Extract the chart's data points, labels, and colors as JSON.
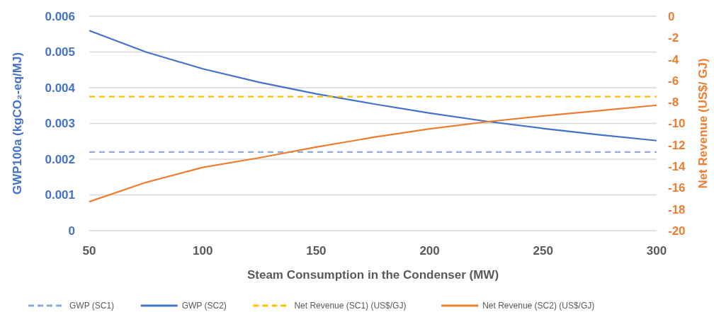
{
  "chart_data": {
    "type": "line",
    "xlabel": "Steam Consumption in the Condenser (MW)",
    "ylabel": "GWP100a (kgCO₂-eq/MJ)",
    "y2label": "Net Revenue (US$/ GJ)",
    "x": [
      50,
      75,
      100,
      125,
      150,
      175,
      200,
      225,
      250,
      275,
      300
    ],
    "xlim": [
      50,
      300
    ],
    "xticks": [
      50,
      100,
      150,
      200,
      250,
      300
    ],
    "ylim": [
      0,
      0.006
    ],
    "yticks": [
      0,
      0.001,
      0.002,
      0.003,
      0.004,
      0.005,
      0.006
    ],
    "y2lim": [
      -20,
      0
    ],
    "y2ticks": [
      -20,
      -18,
      -16,
      -14,
      -12,
      -10,
      -8,
      -6,
      -4,
      -2,
      0
    ],
    "grid": "y",
    "legend": "bottom",
    "marker": "none",
    "series": [
      {
        "name": "GWP (SC1)",
        "color": "#8faadc",
        "line_style": "dashed",
        "values": [
          0.0022,
          0.0022,
          0.0022,
          0.0022,
          0.0022,
          0.0022,
          0.0022,
          0.0022,
          0.0022,
          0.0022,
          0.0022
        ]
      },
      {
        "name": "GWP (SC2)",
        "color": "#4472c4",
        "line_style": "solid",
        "values": [
          0.0056,
          0.005,
          0.00453,
          0.00415,
          0.00383,
          0.00355,
          0.00329,
          0.00306,
          0.00286,
          0.00268,
          0.00252
        ]
      },
      {
        "name": "Net Revenue (SC1) (US$/GJ)",
        "color": "#ffc000",
        "line_style": "dashed",
        "axis": "y2",
        "values": [
          -7.5,
          -7.5,
          -7.5,
          -7.5,
          -7.5,
          -7.5,
          -7.5,
          -7.5,
          -7.5,
          -7.5,
          -7.5
        ]
      },
      {
        "name": "Net Revenue (SC2) (US$/GJ)",
        "color": "#ed7d31",
        "line_style": "solid",
        "axis": "y2",
        "values": [
          -17.3,
          -15.5,
          -14.1,
          -13.2,
          -12.2,
          -11.3,
          -10.5,
          -9.85,
          -9.3,
          -8.8,
          -8.3
        ]
      }
    ]
  }
}
